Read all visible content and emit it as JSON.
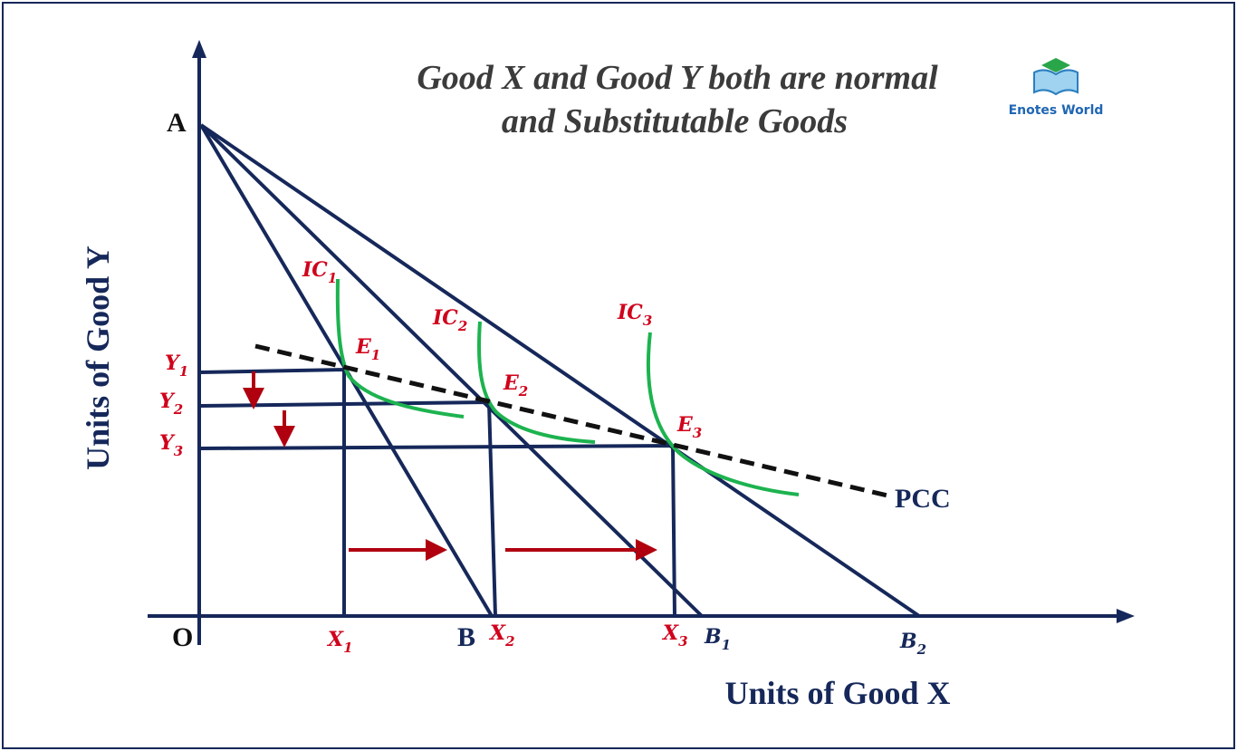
{
  "title": {
    "line1": "Good X and Good Y both are normal",
    "line2": "and Substitutable Goods"
  },
  "logo": {
    "text": "Enotes World"
  },
  "axes": {
    "y_label": "Units of Good Y",
    "x_label": "Units of Good X",
    "origin": "O"
  },
  "points": {
    "A": "A",
    "B": "B",
    "B1": {
      "main": "B",
      "sub": "1"
    },
    "B2": {
      "main": "B",
      "sub": "2"
    },
    "X1": {
      "main": "X",
      "sub": "1"
    },
    "X2": {
      "main": "X",
      "sub": "2"
    },
    "X3": {
      "main": "X",
      "sub": "3"
    },
    "Y1": {
      "main": "Y",
      "sub": "1"
    },
    "Y2": {
      "main": "Y",
      "sub": "2"
    },
    "Y3": {
      "main": "Y",
      "sub": "3"
    },
    "E1": {
      "main": "E",
      "sub": "1"
    },
    "E2": {
      "main": "E",
      "sub": "2"
    },
    "E3": {
      "main": "E",
      "sub": "3"
    },
    "IC1": {
      "main": "IC",
      "sub": "1"
    },
    "IC2": {
      "main": "IC",
      "sub": "2"
    },
    "IC3": {
      "main": "IC",
      "sub": "3"
    }
  },
  "pcc": "PCC"
}
